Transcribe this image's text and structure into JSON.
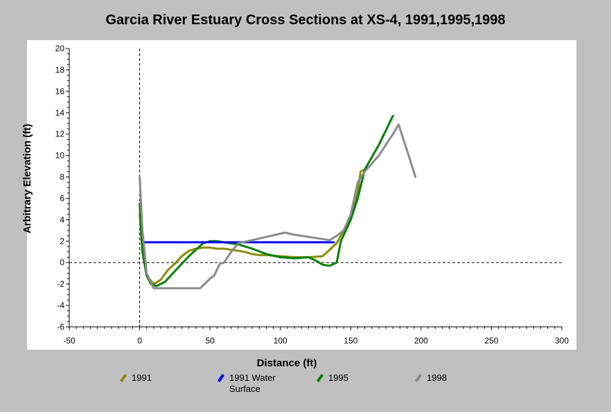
{
  "chart_data": {
    "type": "line",
    "title": "Garcia River Estuary Cross Sections at XS-4, 1991,1995,1998",
    "xlabel": "Distance (ft)",
    "ylabel": "Arbitrary Elevation (ft)",
    "xlim": [
      -50,
      300
    ],
    "ylim": [
      -6,
      20
    ],
    "x_ticks": [
      "-50",
      "0",
      "50",
      "100",
      "150",
      "200",
      "250",
      "300"
    ],
    "y_ticks": [
      "-6",
      "-4",
      "-2",
      "0",
      "2",
      "4",
      "6",
      "8",
      "10",
      "12",
      "14",
      "16",
      "18",
      "20"
    ],
    "reference_lines": {
      "x": 0,
      "y": 0
    },
    "legend_position": "bottom",
    "series": [
      {
        "name": "1991",
        "color": "#8b8b00",
        "x": [
          0,
          2,
          5,
          10,
          15,
          20,
          25,
          30,
          35,
          40,
          45,
          50,
          55,
          60,
          65,
          70,
          75,
          80,
          85,
          90,
          100,
          110,
          120,
          130,
          140,
          145,
          150,
          155,
          157,
          160
        ],
        "y": [
          4.5,
          1.0,
          -1.2,
          -2.0,
          -1.6,
          -0.7,
          -0.1,
          0.6,
          1.1,
          1.3,
          1.4,
          1.4,
          1.3,
          1.3,
          1.2,
          1.1,
          1.0,
          0.8,
          0.7,
          0.7,
          0.6,
          0.5,
          0.5,
          0.6,
          1.8,
          3.0,
          4.2,
          6.5,
          8.5,
          8.7
        ]
      },
      {
        "name": "1991 Water Surface",
        "color": "#0000ff",
        "x": [
          3,
          138
        ],
        "y": [
          1.9,
          1.9
        ]
      },
      {
        "name": "1995",
        "color": "#008000",
        "x": [
          0,
          2,
          5,
          8,
          12,
          18,
          25,
          35,
          45,
          50,
          55,
          60,
          70,
          80,
          90,
          100,
          110,
          120,
          125,
          130,
          135,
          140,
          143,
          150,
          155,
          160,
          170,
          180
        ],
        "y": [
          5.5,
          1.0,
          -1.2,
          -2.0,
          -2.2,
          -1.8,
          -0.8,
          0.6,
          1.8,
          2.0,
          2.0,
          1.9,
          1.7,
          1.3,
          0.8,
          0.5,
          0.4,
          0.5,
          0.2,
          -0.2,
          -0.3,
          0.0,
          2.0,
          4.0,
          6.0,
          8.7,
          11.0,
          13.7
        ]
      },
      {
        "name": "1998",
        "color": "#8a8a8a",
        "x": [
          0,
          2,
          5,
          10,
          20,
          30,
          43,
          50,
          53,
          57,
          60,
          65,
          70,
          80,
          90,
          100,
          103,
          110,
          120,
          130,
          135,
          140,
          145,
          150,
          155,
          160,
          170,
          180,
          184,
          190,
          196
        ],
        "y": [
          8.0,
          3.0,
          -1.0,
          -2.4,
          -2.4,
          -2.4,
          -2.4,
          -1.5,
          -1.2,
          -0.1,
          0.0,
          1.0,
          1.8,
          2.1,
          2.4,
          2.7,
          2.8,
          2.6,
          2.4,
          2.2,
          2.1,
          2.5,
          3.0,
          4.5,
          7.5,
          8.5,
          10.0,
          12.0,
          12.9,
          10.5,
          8.0
        ]
      }
    ]
  }
}
